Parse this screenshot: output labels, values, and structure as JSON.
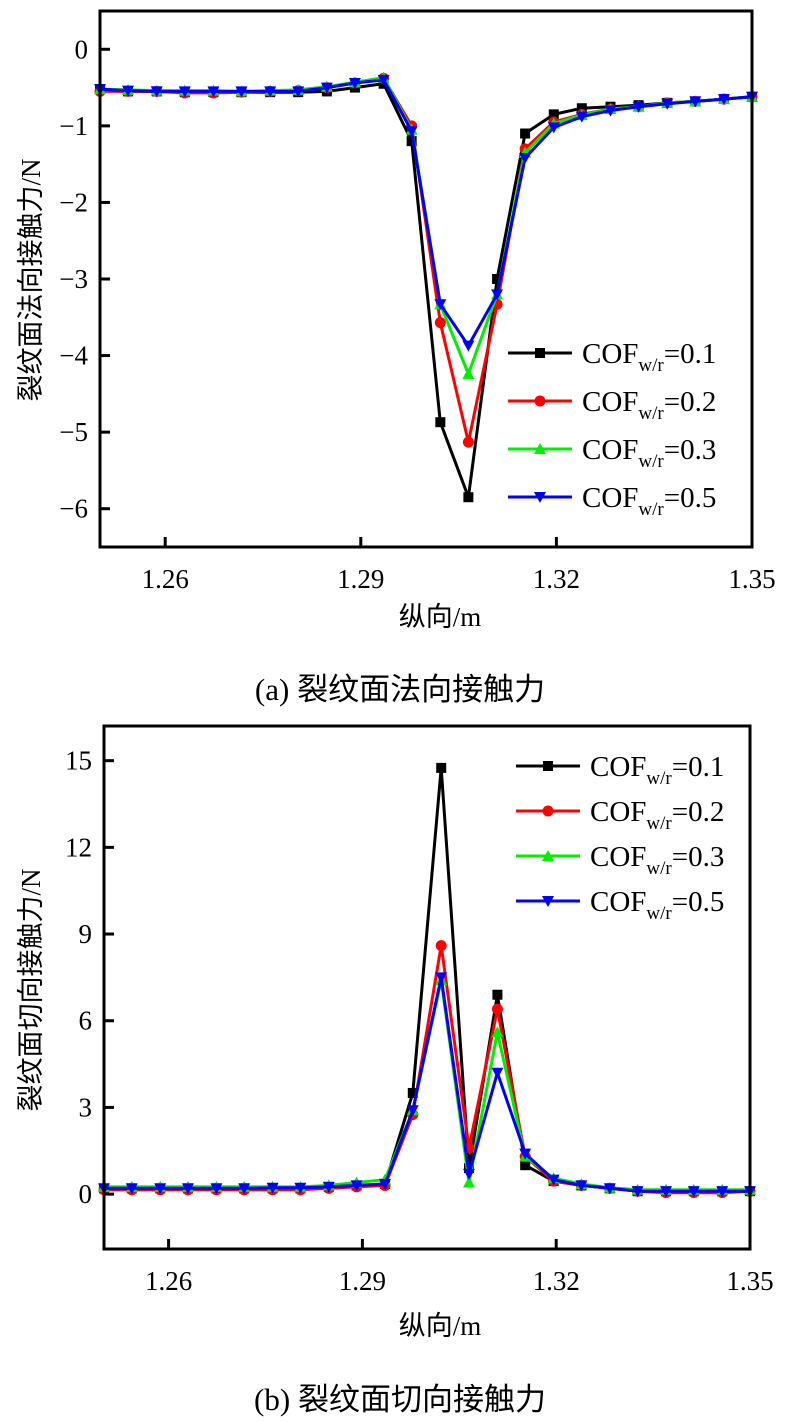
{
  "chart_data": [
    {
      "type": "line",
      "caption": "(a)  裂纹面法向接触力",
      "title": "",
      "xlabel": "纵向/m",
      "ylabel": "裂纹面法向接触力/N",
      "xlim": [
        1.25,
        1.35
      ],
      "ylim": [
        -6.5,
        0.5
      ],
      "xticks": [
        1.26,
        1.29,
        1.32,
        1.35
      ],
      "xtick_labels": [
        "1.26",
        "1.29",
        "1.32",
        "1.35"
      ],
      "yticks": [
        0,
        -1,
        -2,
        -3,
        -4,
        -5,
        -6
      ],
      "ytick_labels": [
        "0",
        "−1",
        "−2",
        "−3",
        "−4",
        "−5",
        "−6"
      ],
      "grid": false,
      "legend_position": "center-right",
      "x": [
        1.25,
        1.2543,
        1.2587,
        1.263,
        1.2674,
        1.2717,
        1.2761,
        1.2804,
        1.2848,
        1.2891,
        1.2935,
        1.2978,
        1.3022,
        1.3065,
        1.3109,
        1.3152,
        1.3196,
        1.3239,
        1.3283,
        1.3326,
        1.337,
        1.3413,
        1.3457,
        1.35
      ],
      "series": [
        {
          "name": "COF=0.1",
          "label_main": "COF",
          "label_sub": "w/r",
          "label_tail": "=0.1",
          "color": "#000000",
          "marker": "square",
          "values": [
            -0.52,
            -0.55,
            -0.55,
            -0.56,
            -0.56,
            -0.56,
            -0.56,
            -0.56,
            -0.55,
            -0.5,
            -0.45,
            -1.2,
            -4.87,
            -5.85,
            -3.0,
            -1.1,
            -0.85,
            -0.77,
            -0.75,
            -0.73,
            -0.7,
            -0.68,
            -0.65,
            -0.62
          ]
        },
        {
          "name": "COF=0.2",
          "label_main": "COF",
          "label_sub": "w/r",
          "label_tail": "=0.2",
          "color": "#ff0000",
          "marker": "circle",
          "values": [
            -0.55,
            -0.55,
            -0.55,
            -0.57,
            -0.57,
            -0.56,
            -0.55,
            -0.54,
            -0.5,
            -0.44,
            -0.38,
            -1.0,
            -3.57,
            -5.13,
            -3.33,
            -1.3,
            -0.95,
            -0.85,
            -0.78,
            -0.75,
            -0.7,
            -0.68,
            -0.65,
            -0.62
          ]
        },
        {
          "name": "COF=0.3",
          "label_main": "COF",
          "label_sub": "w/r",
          "label_tail": "=0.3",
          "color": "#00ee00",
          "marker": "triangle-up",
          "values": [
            -0.52,
            -0.53,
            -0.54,
            -0.54,
            -0.54,
            -0.55,
            -0.54,
            -0.53,
            -0.49,
            -0.43,
            -0.37,
            -1.05,
            -3.33,
            -4.24,
            -3.2,
            -1.35,
            -0.97,
            -0.86,
            -0.78,
            -0.75,
            -0.7,
            -0.68,
            -0.65,
            -0.62
          ]
        },
        {
          "name": "COF=0.5",
          "label_main": "COF",
          "label_sub": "w/r",
          "label_tail": "=0.5",
          "color": "#0000ff",
          "marker": "triangle-down",
          "values": [
            -0.52,
            -0.54,
            -0.55,
            -0.55,
            -0.55,
            -0.55,
            -0.55,
            -0.55,
            -0.5,
            -0.44,
            -0.4,
            -1.07,
            -3.33,
            -3.87,
            -3.2,
            -1.42,
            -1.02,
            -0.88,
            -0.8,
            -0.75,
            -0.71,
            -0.68,
            -0.65,
            -0.62
          ]
        }
      ]
    },
    {
      "type": "line",
      "caption": "(b)  裂纹面切向接触力",
      "title": "",
      "xlabel": "纵向/m",
      "ylabel": "裂纹面切向接触力/N",
      "xlim": [
        1.25,
        1.35
      ],
      "ylim": [
        -1.9,
        16.2
      ],
      "xticks": [
        1.26,
        1.29,
        1.32,
        1.35
      ],
      "xtick_labels": [
        "1.26",
        "1.29",
        "1.32",
        "1.35"
      ],
      "yticks": [
        0,
        3,
        6,
        9,
        12,
        15
      ],
      "ytick_labels": [
        "0",
        "3",
        "6",
        "9",
        "12",
        "15"
      ],
      "grid": false,
      "legend_position": "top-right",
      "x": [
        1.25,
        1.2543,
        1.2587,
        1.263,
        1.2674,
        1.2717,
        1.2761,
        1.2804,
        1.2848,
        1.2891,
        1.2935,
        1.2978,
        1.3022,
        1.3065,
        1.3109,
        1.3152,
        1.3196,
        1.3239,
        1.3283,
        1.3326,
        1.337,
        1.3413,
        1.3457,
        1.35
      ],
      "series": [
        {
          "name": "COF=0.1",
          "label_main": "COF",
          "label_sub": "w/r",
          "label_tail": "=0.1",
          "color": "#000000",
          "marker": "square",
          "values": [
            0.2,
            0.2,
            0.2,
            0.2,
            0.2,
            0.2,
            0.2,
            0.2,
            0.25,
            0.3,
            0.35,
            3.5,
            14.75,
            0.9,
            6.9,
            1.0,
            0.45,
            0.3,
            0.2,
            0.1,
            0.1,
            0.1,
            0.1,
            0.1
          ]
        },
        {
          "name": "COF=0.2",
          "label_main": "COF",
          "label_sub": "w/r",
          "label_tail": "=0.2",
          "color": "#ff0000",
          "marker": "circle",
          "values": [
            0.15,
            0.15,
            0.15,
            0.15,
            0.15,
            0.15,
            0.15,
            0.15,
            0.2,
            0.25,
            0.3,
            2.75,
            8.6,
            1.6,
            6.4,
            1.3,
            0.45,
            0.3,
            0.2,
            0.1,
            0.05,
            0.05,
            0.05,
            0.1
          ]
        },
        {
          "name": "COF=0.3",
          "label_main": "COF",
          "label_sub": "w/r",
          "label_tail": "=0.3",
          "color": "#00ee00",
          "marker": "triangle-up",
          "values": [
            0.25,
            0.25,
            0.25,
            0.25,
            0.25,
            0.25,
            0.25,
            0.25,
            0.3,
            0.4,
            0.5,
            2.9,
            7.4,
            0.4,
            5.6,
            1.3,
            0.55,
            0.35,
            0.22,
            0.15,
            0.15,
            0.15,
            0.15,
            0.15
          ]
        },
        {
          "name": "COF=0.5",
          "label_main": "COF",
          "label_sub": "w/r",
          "label_tail": "=0.5",
          "color": "#0000ff",
          "marker": "triangle-down",
          "values": [
            0.2,
            0.2,
            0.2,
            0.2,
            0.2,
            0.2,
            0.22,
            0.22,
            0.25,
            0.3,
            0.35,
            2.9,
            7.5,
            0.7,
            4.2,
            1.4,
            0.5,
            0.3,
            0.2,
            0.1,
            0.1,
            0.1,
            0.1,
            0.1
          ]
        }
      ]
    }
  ]
}
